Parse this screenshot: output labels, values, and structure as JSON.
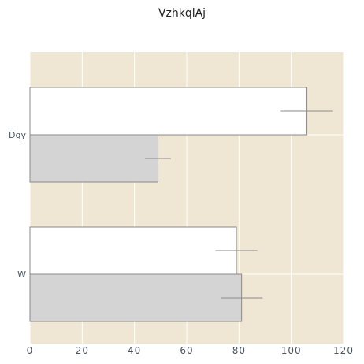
{
  "chart_data": {
    "type": "bar",
    "orientation": "horizontal",
    "title": "VzhkqlAj",
    "xlabel": "",
    "ylabel": "",
    "categories": [
      "Dqy",
      "W"
    ],
    "series": [
      {
        "values": [
          106,
          79
        ],
        "errors": [
          10,
          8
        ],
        "color": "#ffffff"
      },
      {
        "values": [
          49,
          81
        ],
        "errors": [
          5,
          8
        ],
        "color": "#d4d4d4"
      }
    ],
    "xlim": [
      0,
      120
    ],
    "xticks": [
      0,
      20,
      40,
      60,
      80,
      100,
      120
    ],
    "grid": true,
    "plot_background": "#efe6d4",
    "bar_edge_color": "#8a8a8a",
    "error_bar_color": "#8a8a8a"
  }
}
